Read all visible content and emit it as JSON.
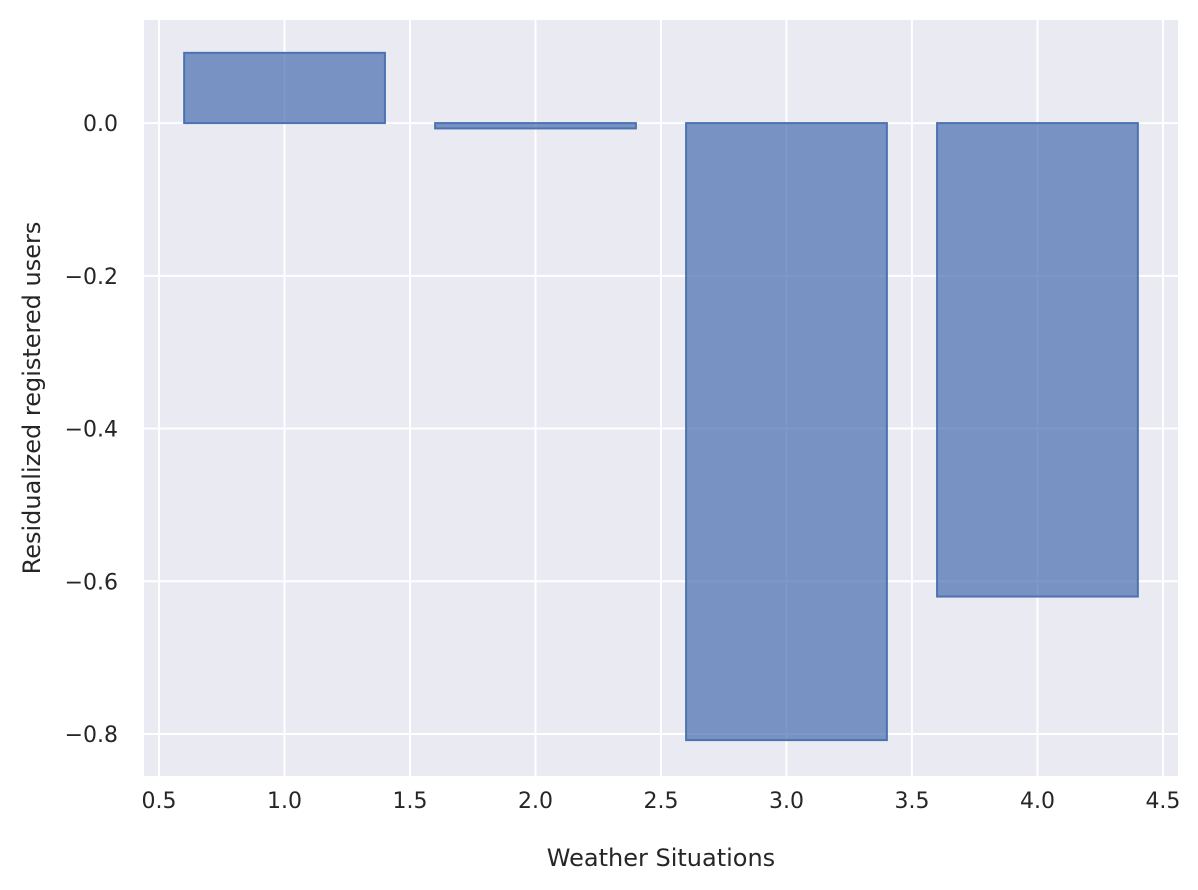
{
  "chart_data": {
    "type": "bar",
    "xlabel": "Weather Situations",
    "ylabel": "Residualized registered users",
    "xlim": [
      0.44,
      4.56
    ],
    "ylim": [
      -0.855,
      0.135
    ],
    "xticks": [
      0.5,
      1.0,
      1.5,
      2.0,
      2.5,
      3.0,
      3.5,
      4.0,
      4.5
    ],
    "xtick_labels": [
      "0.5",
      "1.0",
      "1.5",
      "2.0",
      "2.5",
      "3.0",
      "3.5",
      "4.0",
      "4.5"
    ],
    "yticks": [
      0.0,
      -0.2,
      -0.4,
      -0.6,
      -0.8
    ],
    "ytick_labels": [
      "0.0",
      "−0.2",
      "−0.4",
      "−0.6",
      "−0.8"
    ],
    "bar_width": 0.8,
    "x": [
      1,
      2,
      3,
      4
    ],
    "values": [
      0.092,
      -0.007,
      -0.808,
      -0.62
    ],
    "grid": true,
    "colors": {
      "background": "#eaeaf2",
      "bar": "#4c72b0",
      "grid": "#ffffff",
      "text": "#262626"
    }
  }
}
